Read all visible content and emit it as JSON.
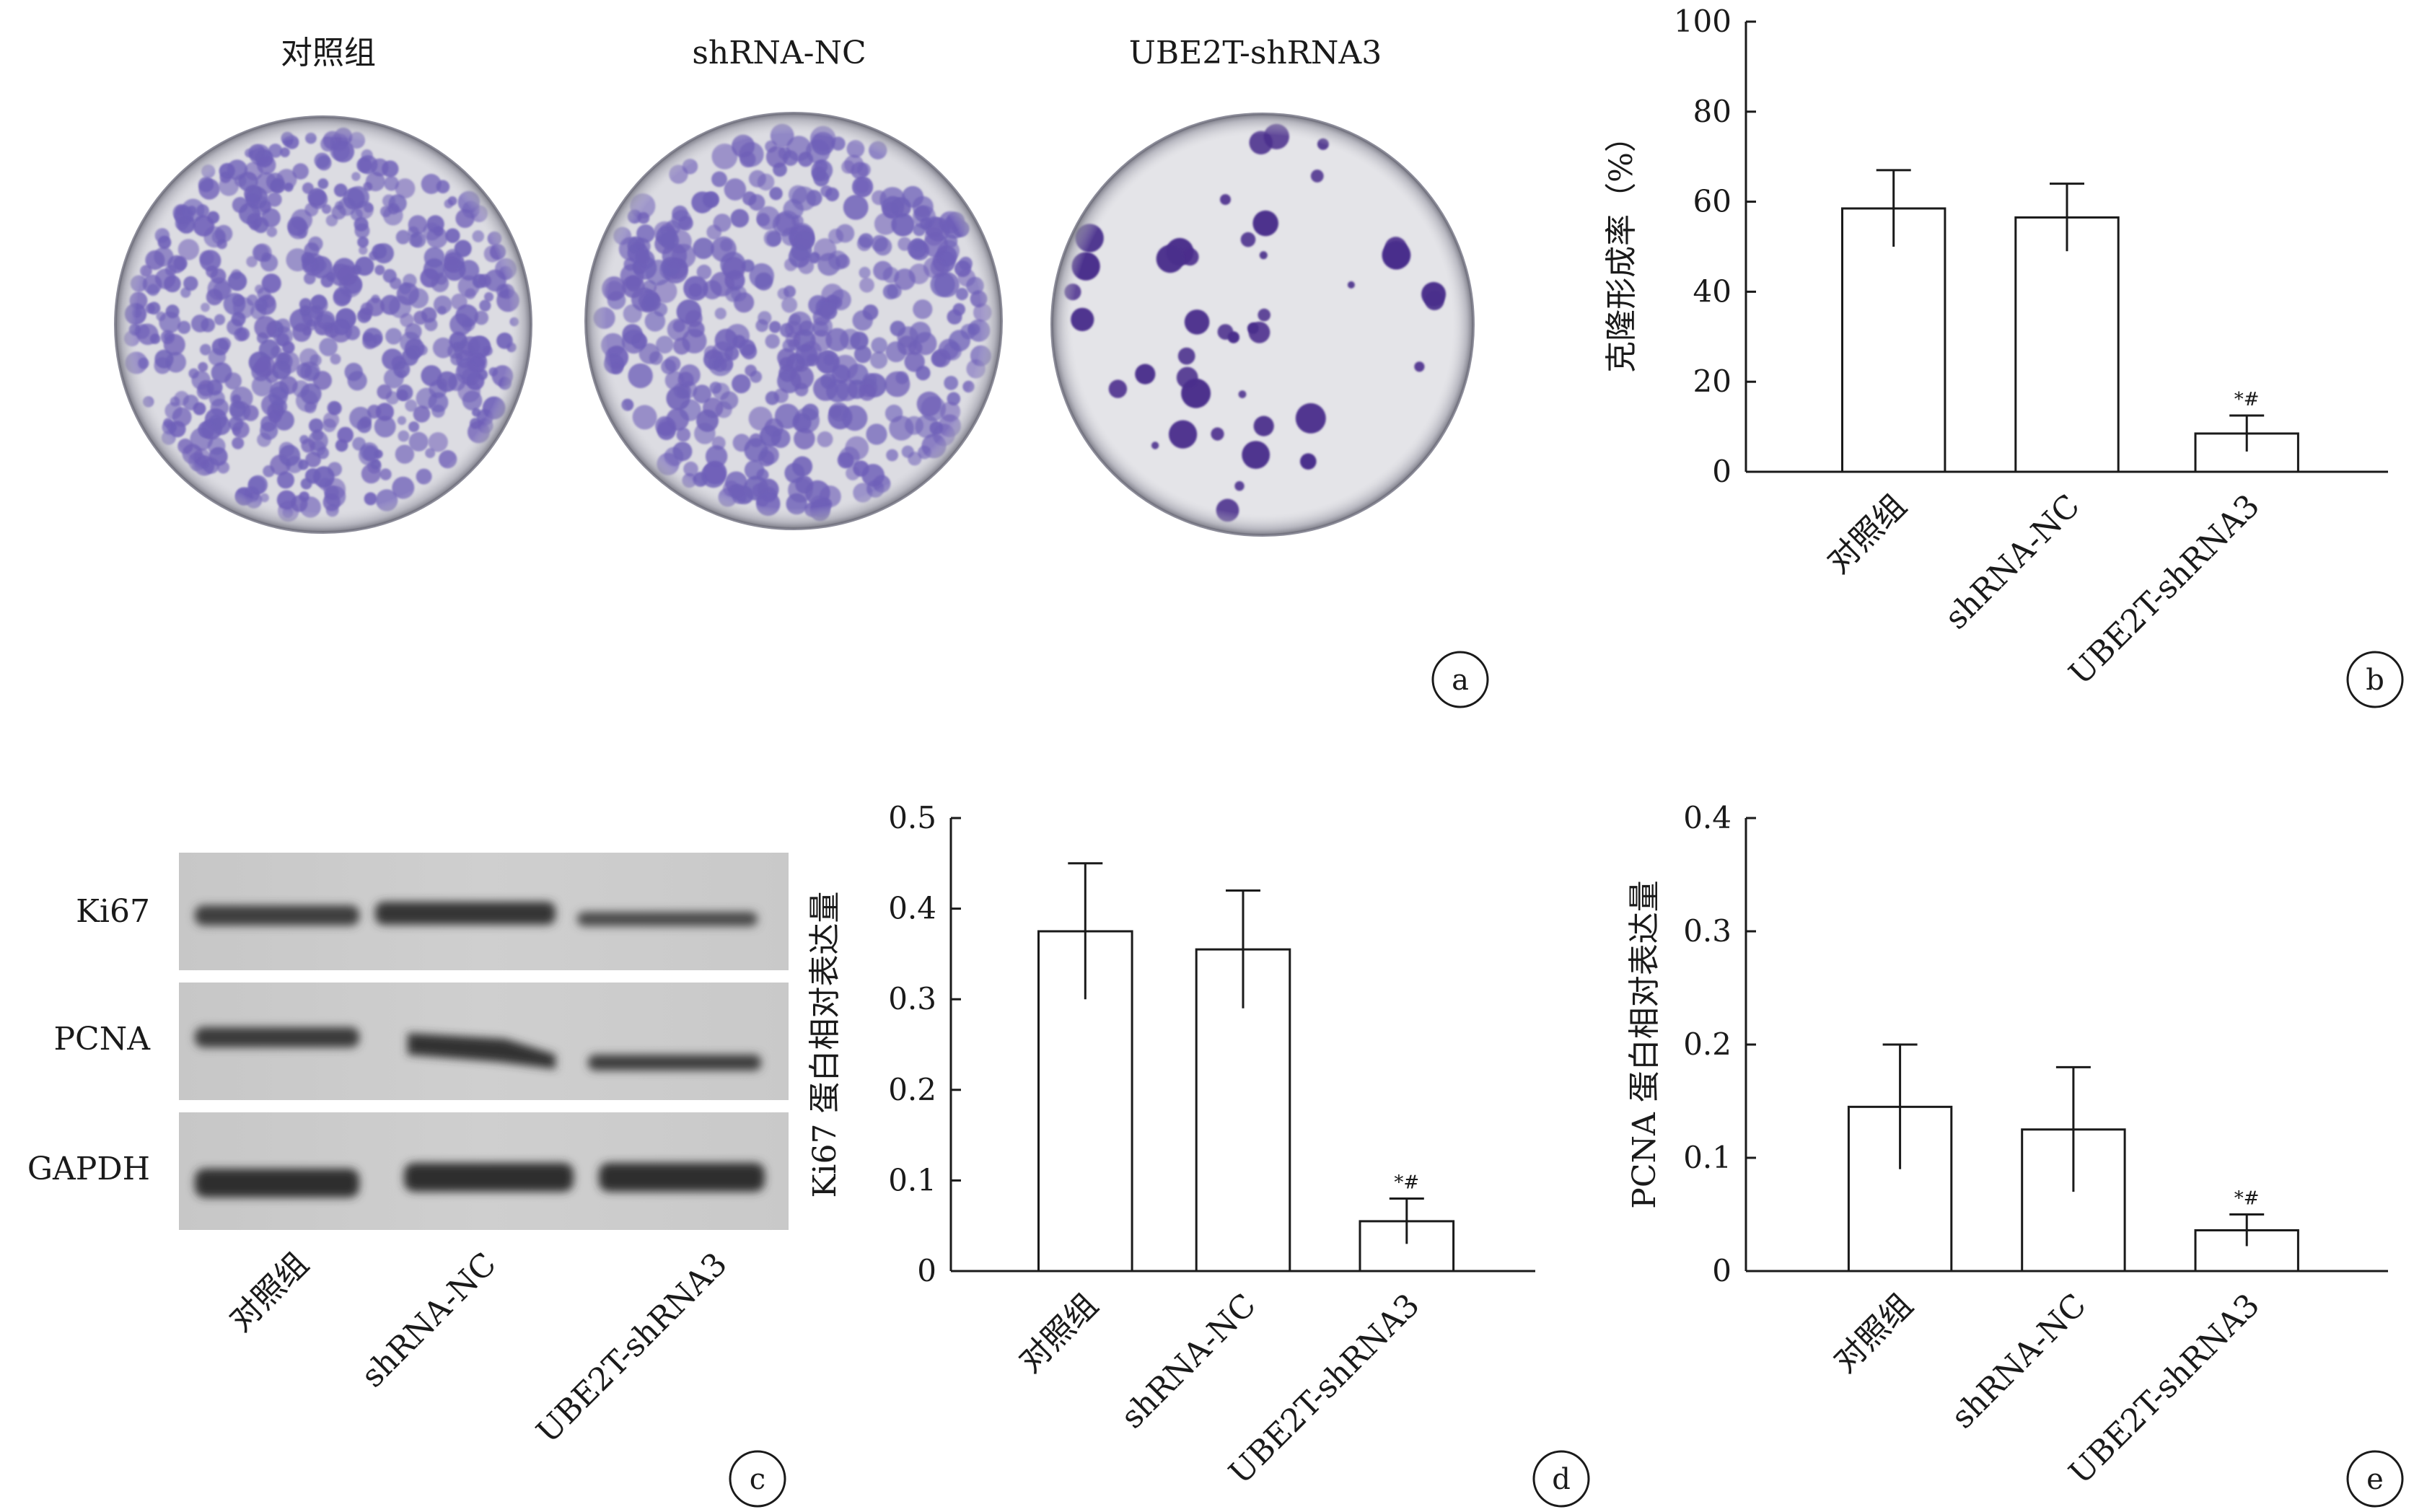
{
  "groups": [
    "对照组",
    "shRNA-NC",
    "UBE2T-shRNA3"
  ],
  "panel_labels": {
    "a": "a",
    "b": "b",
    "c": "c",
    "d": "d",
    "e": "e"
  },
  "panel_a": {
    "dish_labels": [
      "对照组",
      "shRNA-NC",
      "UBE2T-shRNA3"
    ],
    "stain_color": "#6e5fb8"
  },
  "panel_c": {
    "bands": [
      "Ki67",
      "PCNA",
      "GAPDH"
    ]
  },
  "sig_mark": "*#",
  "chart_data": [
    {
      "panel": "b",
      "type": "bar",
      "categories": [
        "对照组",
        "shRNA-NC",
        "UBE2T-shRNA3"
      ],
      "values": [
        58.5,
        56.5,
        8.5
      ],
      "errors": [
        8.5,
        7.5,
        4.0
      ],
      "significance": [
        "",
        "",
        "*#"
      ],
      "ylabel": "克隆形成率（%）",
      "ylim": [
        0,
        100
      ],
      "yticks": [
        "0",
        "20",
        "40",
        "60",
        "80",
        "100"
      ],
      "grid": false
    },
    {
      "panel": "d",
      "type": "bar",
      "categories": [
        "对照组",
        "shRNA-NC",
        "UBE2T-shRNA3"
      ],
      "values": [
        0.375,
        0.355,
        0.055
      ],
      "errors": [
        0.075,
        0.065,
        0.025
      ],
      "significance": [
        "",
        "",
        "*#"
      ],
      "ylabel": "Ki67 蛋白相对表达量",
      "ylim": [
        0,
        0.5
      ],
      "yticks": [
        "0",
        "0.1",
        "0.2",
        "0.3",
        "0.4",
        "0.5"
      ],
      "grid": false
    },
    {
      "panel": "e",
      "type": "bar",
      "categories": [
        "对照组",
        "shRNA-NC",
        "UBE2T-shRNA3"
      ],
      "values": [
        0.145,
        0.125,
        0.036
      ],
      "errors": [
        0.055,
        0.055,
        0.014
      ],
      "significance": [
        "",
        "",
        "*#"
      ],
      "ylabel": "PCNA 蛋白相对表达量",
      "ylim": [
        0,
        0.4
      ],
      "yticks": [
        "0",
        "0.1",
        "0.2",
        "0.3",
        "0.4"
      ],
      "grid": false
    }
  ]
}
